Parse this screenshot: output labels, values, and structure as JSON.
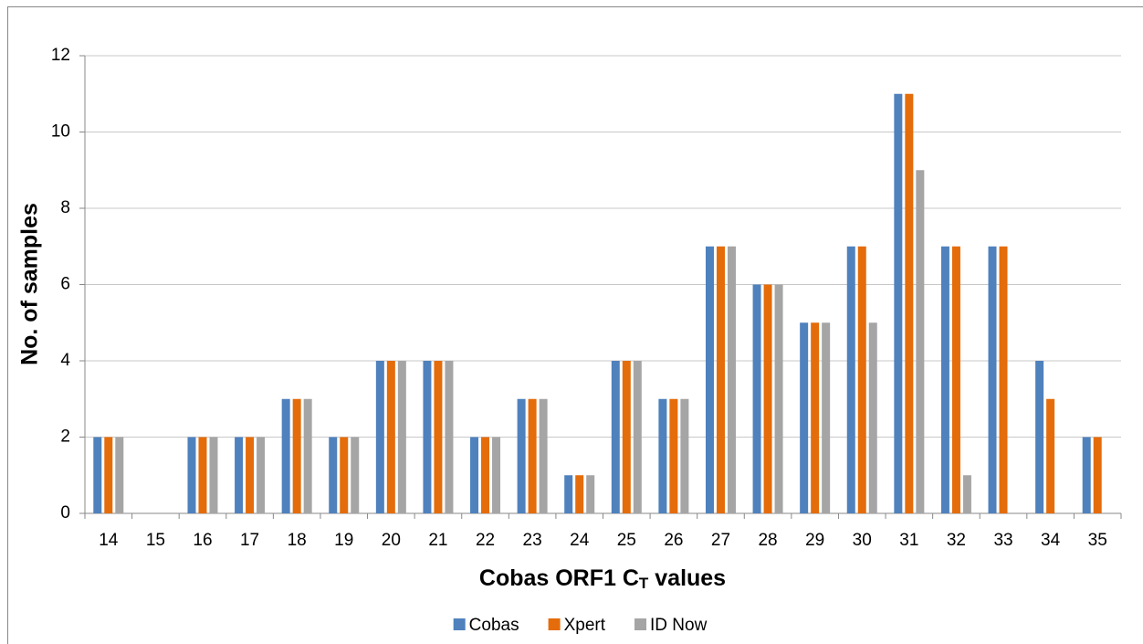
{
  "chart_data": {
    "type": "bar",
    "x_label": [
      "Cobas ORF1 C",
      "T",
      " values"
    ],
    "y_label": "No. of samples",
    "categories": [
      "14",
      "15",
      "16",
      "17",
      "18",
      "19",
      "20",
      "21",
      "22",
      "23",
      "24",
      "25",
      "26",
      "27",
      "28",
      "29",
      "30",
      "31",
      "32",
      "33",
      "34",
      "35"
    ],
    "series": [
      {
        "name": "Cobas",
        "color": "#4f81bd",
        "values": [
          2,
          0,
          2,
          2,
          3,
          2,
          4,
          4,
          2,
          3,
          1,
          4,
          3,
          7,
          6,
          5,
          7,
          11,
          7,
          7,
          4,
          2
        ]
      },
      {
        "name": "Xpert",
        "color": "#e46c0a",
        "values": [
          2,
          0,
          2,
          2,
          3,
          2,
          4,
          4,
          2,
          3,
          1,
          4,
          3,
          7,
          6,
          5,
          7,
          11,
          7,
          7,
          3,
          2
        ]
      },
      {
        "name": "ID Now",
        "color": "#a5a5a5",
        "values": [
          2,
          0,
          2,
          2,
          3,
          2,
          4,
          4,
          2,
          3,
          1,
          4,
          3,
          7,
          6,
          5,
          5,
          9,
          1,
          0,
          0,
          0
        ]
      }
    ],
    "ylim": [
      0,
      12
    ],
    "yticks": [
      0,
      2,
      4,
      6,
      8,
      10,
      12
    ],
    "grid": true,
    "legend": "bottom"
  }
}
